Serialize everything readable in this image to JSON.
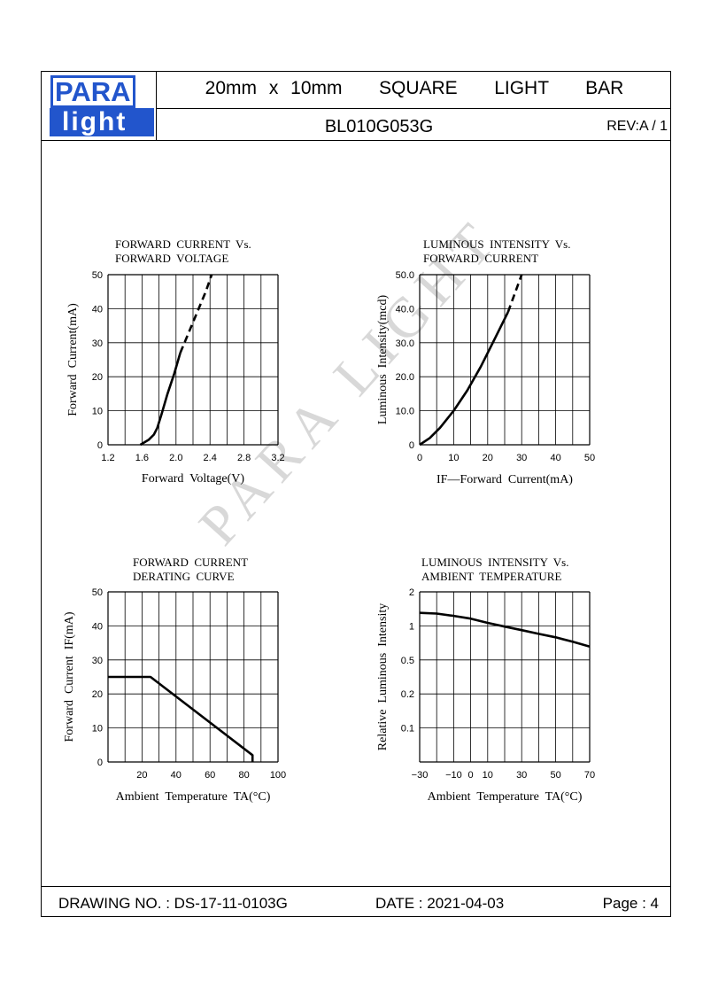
{
  "header": {
    "logo_top": "PARA",
    "logo_bottom": "light",
    "title": "20mm x 10mm   SQUARE   LIGHT   BAR",
    "part_number": "BL010G053G",
    "revision": "REV:A / 1"
  },
  "watermark": "PARA LIGHT",
  "footer": {
    "drawing_no": "DRAWING NO. : DS-17-11-0103G",
    "date": "DATE : 2021-04-03",
    "page": "Page : 4"
  },
  "chart_data": [
    {
      "type": "line",
      "title": "FORWARD  CURRENT  Vs.\nFORWARD  VOLTAGE",
      "xlabel": "Forward  Voltage(V)",
      "ylabel": "Forward  Current(mA)",
      "xlim": [
        1.2,
        3.2
      ],
      "ylim": [
        0,
        50
      ],
      "x_ticks": [
        "1.2",
        "1.6",
        "2.0",
        "2.4",
        "2.8",
        "3.2"
      ],
      "y_ticks": [
        "0",
        "10",
        "20",
        "30",
        "40",
        "50"
      ],
      "grid": true,
      "series": [
        {
          "style": "solid",
          "x": [
            1.58,
            1.68,
            1.74,
            1.78,
            1.83,
            1.9,
            1.98,
            2.05
          ],
          "y": [
            0,
            1.5,
            3,
            5,
            9,
            15,
            21,
            27
          ]
        },
        {
          "style": "dashed",
          "x": [
            2.05,
            2.2,
            2.35,
            2.42
          ],
          "y": [
            27,
            36,
            45,
            50
          ]
        }
      ]
    },
    {
      "type": "line",
      "title": "LUMINOUS  INTENSITY  Vs.\nFORWARD  CURRENT",
      "xlabel": "IF—Forward  Current(mA)",
      "ylabel": "Luminous  Intensity(mcd)",
      "xlim": [
        0,
        50
      ],
      "ylim": [
        0,
        50
      ],
      "x_ticks": [
        "0",
        "10",
        "20",
        "30",
        "40",
        "50"
      ],
      "y_ticks": [
        "0",
        "10.0",
        "20.0",
        "30.0",
        "40.0",
        "50.0"
      ],
      "grid": true,
      "series": [
        {
          "style": "solid",
          "x": [
            0,
            3,
            6,
            10,
            14,
            18,
            22,
            26
          ],
          "y": [
            0,
            2,
            5,
            10,
            16,
            23,
            31,
            39
          ]
        },
        {
          "style": "dashed",
          "x": [
            26,
            28,
            30
          ],
          "y": [
            39,
            44.5,
            50
          ]
        }
      ]
    },
    {
      "type": "line",
      "title": "FORWARD  CURRENT\nDERATING  CURVE",
      "xlabel": "Ambient  Temperature  TA(°C)",
      "ylabel": "Forward  Current  IF(mA)",
      "xlim": [
        0,
        100
      ],
      "ylim": [
        0,
        50
      ],
      "x_ticks": [
        "20",
        "40",
        "60",
        "80",
        "100"
      ],
      "y_ticks": [
        "0",
        "10",
        "20",
        "30",
        "40",
        "50"
      ],
      "grid": true,
      "series": [
        {
          "style": "solid",
          "x": [
            0,
            25,
            85,
            85
          ],
          "y": [
            25,
            25,
            2,
            0
          ]
        }
      ]
    },
    {
      "type": "line",
      "title": "LUMINOUS  INTENSITY  Vs.\nAMBIENT  TEMPERATURE",
      "xlabel": "Ambient  Temperature  TA(°C)",
      "ylabel": "Relative  Luminous  Intensity",
      "xlim": [
        -30,
        70
      ],
      "x_ticks": [
        "−30",
        "−10",
        "0",
        "10",
        "30",
        "50",
        "70"
      ],
      "y_ticks": [
        "0.1",
        "0.2",
        "0.5",
        "1",
        "2"
      ],
      "y_scale": "log",
      "grid": true,
      "series": [
        {
          "style": "solid",
          "x": [
            -30,
            -20,
            -10,
            0,
            10,
            20,
            30,
            40,
            50,
            60,
            70
          ],
          "y": [
            1.35,
            1.33,
            1.27,
            1.2,
            1.1,
            1.02,
            0.95,
            0.88,
            0.82,
            0.75,
            0.68
          ]
        }
      ]
    }
  ]
}
